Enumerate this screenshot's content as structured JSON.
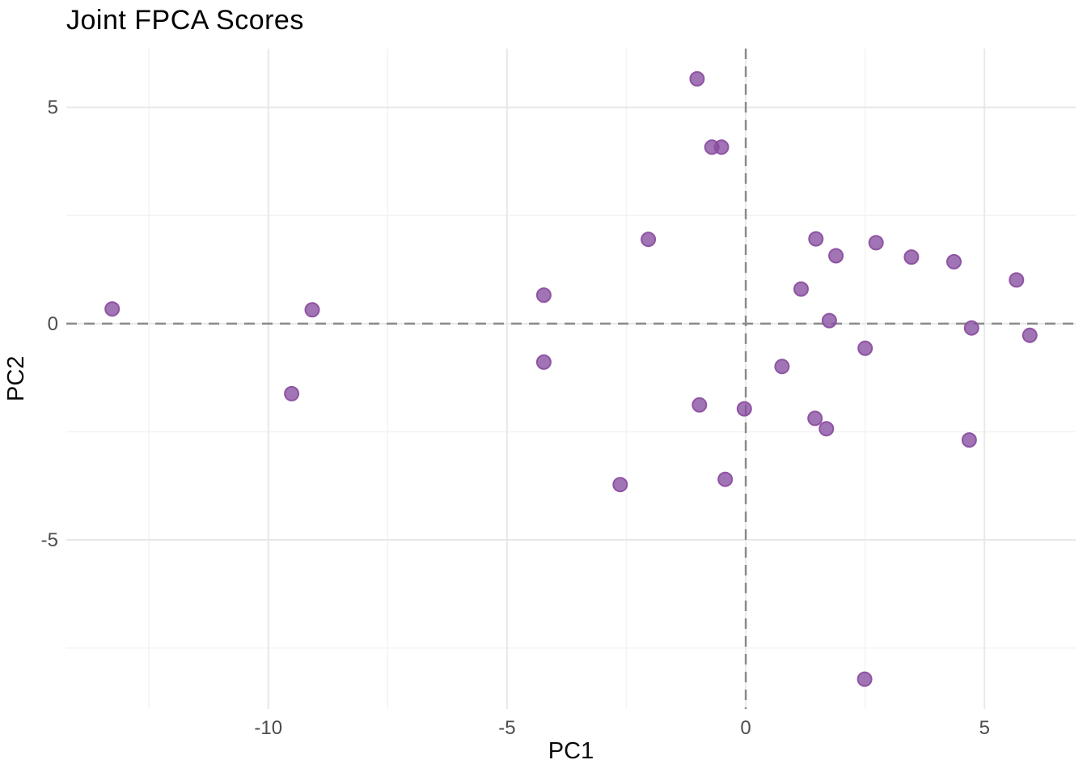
{
  "chart_data": {
    "type": "scatter",
    "title": "Joint FPCA Scores",
    "xlabel": "PC1",
    "ylabel": "PC2",
    "x_ticks": [
      -10,
      -5,
      0,
      5
    ],
    "y_ticks": [
      -5,
      0,
      5
    ],
    "x_minor_ticks": [
      -12.5,
      -7.5,
      -2.5,
      2.5
    ],
    "y_minor_ticks": [
      -7.5,
      -2.5,
      2.5
    ],
    "xlim": [
      -14.23,
      6.91
    ],
    "ylim": [
      -8.91,
      6.36
    ],
    "grid": "on",
    "legend_position": "none",
    "reference_lines": {
      "horizontal_y": 0,
      "vertical_x": 0,
      "style": "dashed"
    },
    "points": [
      [
        -13.27,
        0.34
      ],
      [
        -9.51,
        -1.62
      ],
      [
        -9.08,
        0.32
      ],
      [
        -4.23,
        0.66
      ],
      [
        -4.23,
        -0.89
      ],
      [
        -2.63,
        -3.72
      ],
      [
        -2.04,
        1.95
      ],
      [
        -1.02,
        5.66
      ],
      [
        -0.97,
        -1.88
      ],
      [
        -0.71,
        4.08
      ],
      [
        -0.51,
        4.08
      ],
      [
        -0.43,
        -3.6
      ],
      [
        -0.03,
        -1.97
      ],
      [
        0.76,
        -0.99
      ],
      [
        1.16,
        0.8
      ],
      [
        1.45,
        -2.19
      ],
      [
        1.47,
        1.96
      ],
      [
        1.69,
        -2.43
      ],
      [
        1.75,
        0.07
      ],
      [
        1.89,
        1.57
      ],
      [
        2.49,
        -8.22
      ],
      [
        2.5,
        -0.57
      ],
      [
        2.73,
        1.87
      ],
      [
        3.47,
        1.54
      ],
      [
        4.36,
        1.43
      ],
      [
        4.68,
        -2.69
      ],
      [
        4.73,
        -0.1
      ],
      [
        5.67,
        1.01
      ],
      [
        5.95,
        -0.27
      ]
    ],
    "colors": {
      "point_fill": "#874DA0",
      "point_fill_opacity": 0.78,
      "point_stroke": "#8C4FA0",
      "point_stroke_opacity": 0.95,
      "grid_major": "#E8E8E8",
      "grid_minor": "#F3F3F3",
      "reference_line": "#8A8A8A",
      "tick_label_color": "#4D4D4D",
      "axis_title_color": "#0a0a0a",
      "title_color": "#000000"
    }
  }
}
